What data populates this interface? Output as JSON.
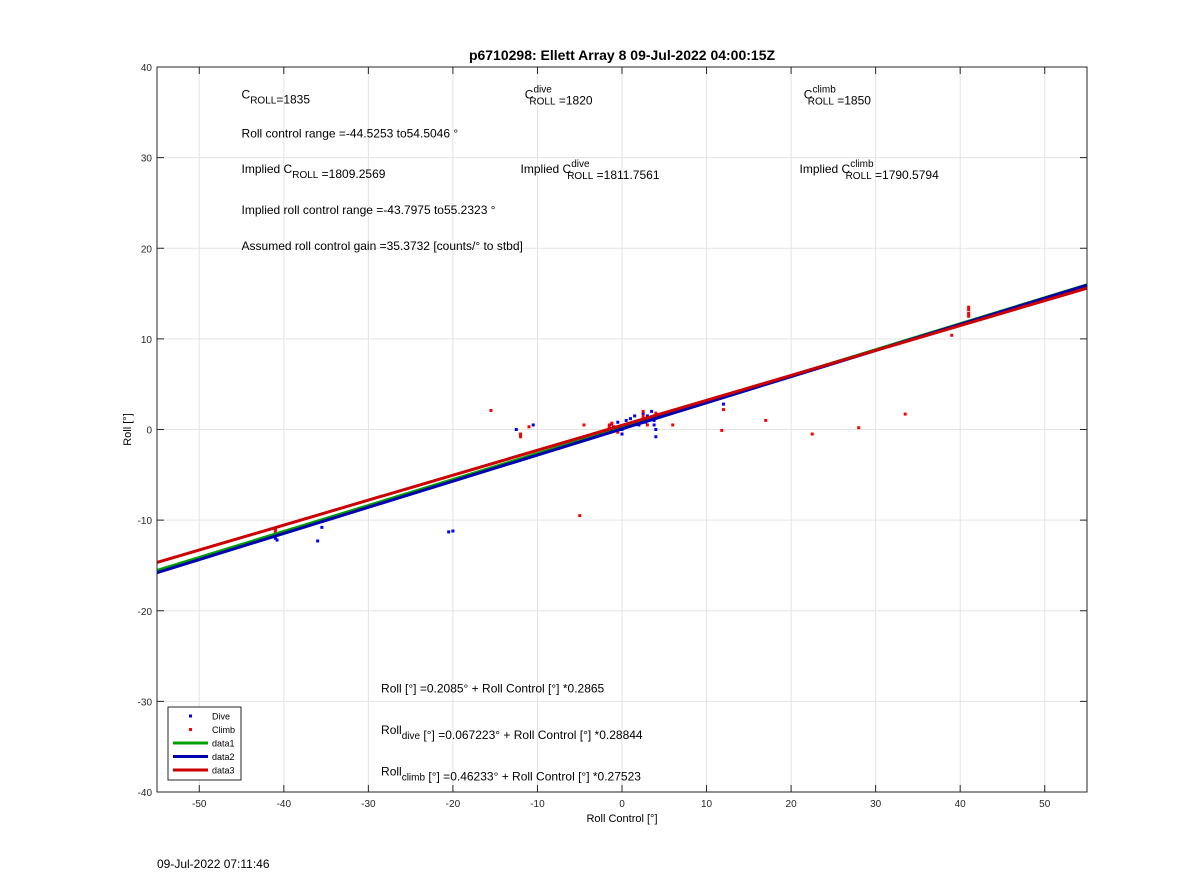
{
  "footer": {
    "timestamp": "09-Jul-2022 07:11:46"
  },
  "chart_data": {
    "type": "scatter",
    "title": "p6710298: Ellett Array 8 09-Jul-2022 04:00:15Z",
    "xlabel": "Roll Control [°]",
    "ylabel": "Roll [°]",
    "xlim": [
      -55,
      55
    ],
    "ylim": [
      -40,
      40
    ],
    "xticks": [
      -50,
      -40,
      -30,
      -20,
      -10,
      0,
      10,
      20,
      30,
      40,
      50
    ],
    "yticks": [
      -40,
      -30,
      -20,
      -10,
      0,
      10,
      20,
      30,
      40
    ],
    "grid": true,
    "legend_position": "bottom-left",
    "legend": [
      "Dive",
      "Climb",
      "data1",
      "data2",
      "data3"
    ],
    "series": [
      {
        "name": "Dive",
        "kind": "points",
        "color": "#0000ff",
        "x": [
          -41,
          -41,
          -41.2,
          -40.8,
          -36,
          -35.5,
          -20.5,
          -20,
          -12.5,
          -10.5,
          -1.5,
          -1.2,
          -1,
          -0.5,
          0,
          0,
          0,
          0.5,
          1,
          1.5,
          2,
          2.5,
          2.8,
          3,
          3.5,
          3.8,
          3.8,
          3.8,
          4,
          4,
          12
        ],
        "y": [
          -12,
          -11.5,
          -11.8,
          -12.2,
          -12.3,
          -10.8,
          -11.3,
          -11.2,
          0,
          0.5,
          0.3,
          0.6,
          0.2,
          0.8,
          -0.5,
          0,
          0.3,
          1,
          1.2,
          1.5,
          0.5,
          1.8,
          0.8,
          1.5,
          2,
          0.5,
          1,
          1.5,
          -0.8,
          0,
          2.8
        ]
      },
      {
        "name": "Climb",
        "kind": "points",
        "color": "#ff0000",
        "x": [
          -41,
          -41,
          -41,
          -15.5,
          -12,
          -12,
          -11,
          -5,
          -4.5,
          -1.5,
          -1.5,
          -1.2,
          -1,
          -0.5,
          2,
          2.5,
          2.5,
          2.5,
          3,
          3,
          3.5,
          4,
          6,
          11.8,
          12,
          17,
          22.5,
          28,
          33.5,
          39,
          41,
          41,
          41,
          41
        ],
        "y": [
          -11,
          -11.5,
          -11.2,
          2.1,
          -0.5,
          -0.8,
          0.3,
          -9.5,
          0.5,
          0.2,
          0.5,
          0.7,
          0.3,
          -0.3,
          0.8,
          1.5,
          2,
          1.2,
          1,
          0.5,
          1.3,
          1.8,
          0.5,
          -0.1,
          2.2,
          1,
          -0.5,
          0.2,
          1.7,
          10.4,
          12.8,
          13.2,
          13.5,
          12.5
        ]
      },
      {
        "name": "data1",
        "kind": "line",
        "color": "#00a000",
        "intercept": 0.2085,
        "slope": 0.2865
      },
      {
        "name": "data2",
        "kind": "line",
        "color": "#0000b0",
        "intercept": 0.067223,
        "slope": 0.28844
      },
      {
        "name": "data3",
        "kind": "line",
        "color": "#cc0000",
        "intercept": 0.46233,
        "slope": 0.27523
      }
    ],
    "annotations": [
      {
        "id": "c-roll",
        "segments": [
          {
            "t": "C"
          },
          {
            "t": "ROLL",
            "sub": true
          },
          {
            "t": "=1835"
          }
        ],
        "x": -45,
        "y": 36.5
      },
      {
        "id": "c-roll-dive",
        "segments": [
          {
            "t": "C"
          },
          {
            "t": "dive",
            "sup": true,
            "sub2": "ROLL"
          },
          {
            "t": " =1820"
          }
        ],
        "x": -11.5,
        "y": 36.5
      },
      {
        "id": "c-roll-climb",
        "segments": [
          {
            "t": "C"
          },
          {
            "t": "climb",
            "sup": true,
            "sub2": "ROLL"
          },
          {
            "t": " =1850"
          }
        ],
        "x": 21.5,
        "y": 36.5
      },
      {
        "id": "roll-control-range",
        "segments": [
          {
            "t": "Roll control range =-44.5253 to54.5046 °"
          }
        ],
        "x": -45,
        "y": 32.2
      },
      {
        "id": "implied-c-roll",
        "segments": [
          {
            "t": "Implied C"
          },
          {
            "t": "ROLL",
            "sub": true
          },
          {
            "t": " =1809.2569"
          }
        ],
        "x": -45,
        "y": 28.3
      },
      {
        "id": "implied-c-roll-dive",
        "segments": [
          {
            "t": "Implied C"
          },
          {
            "t": "dive",
            "sup": true,
            "sub2": "ROLL"
          },
          {
            "t": " =1811.7561"
          }
        ],
        "x": -12,
        "y": 28.3
      },
      {
        "id": "implied-c-roll-climb",
        "segments": [
          {
            "t": "Implied C"
          },
          {
            "t": "climb",
            "sup": true,
            "sub2": "ROLL"
          },
          {
            "t": " =1790.5794"
          }
        ],
        "x": 21,
        "y": 28.3
      },
      {
        "id": "implied-range",
        "segments": [
          {
            "t": "Implied roll control range =-43.7975 to55.2323 °"
          }
        ],
        "x": -45,
        "y": 23.8
      },
      {
        "id": "assumed-gain",
        "segments": [
          {
            "t": "Assumed roll control gain =35.3732 [counts/° to stbd]"
          }
        ],
        "x": -45,
        "y": 19.8
      },
      {
        "id": "fit-all",
        "segments": [
          {
            "t": "Roll [°] =0.2085° + Roll Control [°] *0.2865"
          }
        ],
        "x": -28.5,
        "y": -29
      },
      {
        "id": "fit-dive",
        "segments": [
          {
            "t": "Roll"
          },
          {
            "t": "dive",
            "sub": true
          },
          {
            "t": " [°] =0.067223° + Roll Control [°] *0.28844"
          }
        ],
        "x": -28.5,
        "y": -33.6
      },
      {
        "id": "fit-climb",
        "segments": [
          {
            "t": "Roll"
          },
          {
            "t": "climb",
            "sub": true
          },
          {
            "t": " [°] =0.46233° + Roll Control [°] *0.27523"
          }
        ],
        "x": -28.5,
        "y": -38.2
      }
    ]
  }
}
